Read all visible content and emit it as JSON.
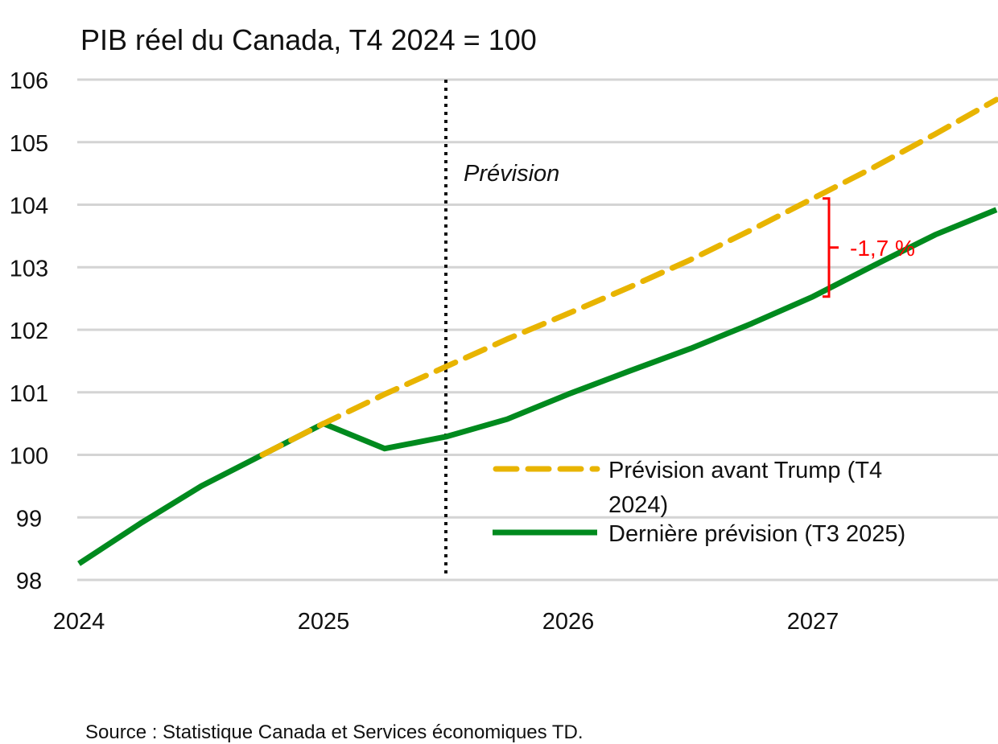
{
  "chart_data": {
    "type": "line",
    "title": "PIB réel du Canada, T4 2024 = 100",
    "xlabel": "",
    "ylabel": "",
    "ylim": [
      98,
      106
    ],
    "yticks": [
      "98",
      "99",
      "100",
      "101",
      "102",
      "103",
      "104",
      "105",
      "106"
    ],
    "xticks": [
      "2024",
      "2025",
      "2026",
      "2027"
    ],
    "grid": true,
    "legend_placement": "bottom-right",
    "x": [
      "T1 2024",
      "T2 2024",
      "T3 2024",
      "T4 2024",
      "T1 2025",
      "T2 2025",
      "T3 2025",
      "T4 2025",
      "T1 2026",
      "T2 2026",
      "T3 2026",
      "T4 2026",
      "T1 2027",
      "T2 2027",
      "T3 2027",
      "T4 2027"
    ],
    "series": [
      {
        "name": "Prévision avant Trump (T4 2024)",
        "color": "#E8B400",
        "style": "dashed",
        "values": [
          null,
          null,
          null,
          100.0,
          100.5,
          100.97,
          101.41,
          101.85,
          102.26,
          102.68,
          103.12,
          103.6,
          104.1,
          104.6,
          105.13,
          105.68
        ]
      },
      {
        "name": "Dernière prévision (T3 2025)",
        "color": "#008A1E",
        "style": "solid",
        "values": [
          98.26,
          98.9,
          99.5,
          100.0,
          100.5,
          100.1,
          100.29,
          100.57,
          100.97,
          101.34,
          101.7,
          102.1,
          102.53,
          103.03,
          103.52,
          103.92
        ]
      }
    ],
    "forecast_marker": {
      "x": "T3 2025",
      "label": "Prévision"
    },
    "annotation": {
      "text": "-1,7 %",
      "x": "T1 2027",
      "color": "#FF0000"
    },
    "source": "Source : Statistique Canada et Services économiques TD."
  }
}
